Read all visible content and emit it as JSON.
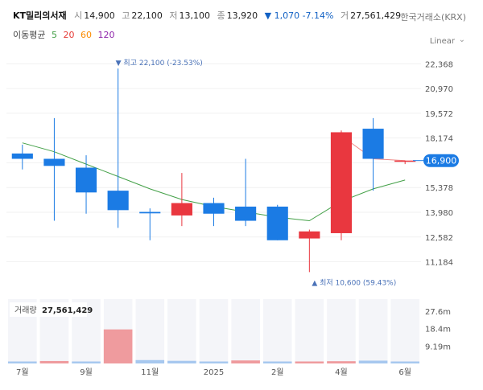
{
  "header": {
    "name": "KT밀리의서재",
    "open_label": "시",
    "open": "14,900",
    "high_label": "고",
    "high": "22,100",
    "low_label": "저",
    "low": "13,100",
    "close_label": "종",
    "close": "13,920",
    "change": "▼ 1,070 -7.14%",
    "vol_label": "거",
    "volume": "27,561,429",
    "exchange": "한국거래소(KRX)"
  },
  "ma_legend": {
    "title": "이동평균",
    "items": [
      {
        "label": "5",
        "color": "#43a047"
      },
      {
        "label": "20",
        "color": "#e53935"
      },
      {
        "label": "60",
        "color": "#fb8c00"
      },
      {
        "label": "120",
        "color": "#8e24aa"
      }
    ]
  },
  "scale_mode": "Linear",
  "chart_data": {
    "type": "candlestick",
    "y_ticks": [
      22368,
      20970,
      19572,
      18174,
      16776,
      15378,
      13980,
      12582,
      11184
    ],
    "y_tick_labels": [
      "22,368",
      "20,970",
      "19,572",
      "18,174",
      "",
      "15,378",
      "13,980",
      "12,582",
      "11,184"
    ],
    "ylim": [
      10300,
      22700
    ],
    "candles": [
      {
        "open": 17300,
        "close": 17000,
        "high": 17800,
        "low": 16400
      },
      {
        "open": 17000,
        "close": 16600,
        "high": 19300,
        "low": 13500
      },
      {
        "open": 16500,
        "close": 15100,
        "high": 17200,
        "low": 13900
      },
      {
        "open": 15200,
        "close": 14100,
        "high": 22100,
        "low": 13100
      },
      {
        "open": 14000,
        "close": 13920,
        "high": 14200,
        "low": 12400
      },
      {
        "open": 13800,
        "close": 14500,
        "high": 16200,
        "low": 13200
      },
      {
        "open": 14500,
        "close": 13900,
        "high": 14800,
        "low": 13200
      },
      {
        "open": 14300,
        "close": 13500,
        "high": 17000,
        "low": 13200
      },
      {
        "open": 14300,
        "close": 12400,
        "high": 14400,
        "low": 12400
      },
      {
        "open": 12500,
        "close": 12900,
        "high": 13000,
        "low": 10600
      },
      {
        "open": 12800,
        "close": 18500,
        "high": 18600,
        "low": 12400
      },
      {
        "open": 18700,
        "close": 17000,
        "high": 19300,
        "low": 15200
      },
      {
        "open": 16900,
        "close": 16900,
        "high": 16900,
        "low": 16700
      }
    ],
    "ma5": [
      17900,
      17400,
      16700,
      16000,
      15300,
      14700,
      14300,
      14000,
      13700,
      13500,
      14600,
      15300,
      15800
    ],
    "ma20_recent": [
      18300,
      17000,
      16900
    ],
    "last_price": "16,900",
    "last_value": 16900,
    "high_note": "▼ 최고 22,100 (-23.53%)",
    "high_value": 22100,
    "low_note": "▲ 최저 10,600 (59.43%)",
    "low_value": 10600,
    "volume_title": "거래량",
    "volume_total": "27,561,429",
    "volume_ticks": [
      "27.6m",
      "18.4m",
      "9.19m"
    ],
    "volume_tick_values": [
      27600000,
      18400000,
      9190000
    ],
    "volume_max": 34000000,
    "volumes": [
      {
        "value": 800000,
        "up": false
      },
      {
        "value": 1300000,
        "up": true
      },
      {
        "value": 600000,
        "up": false
      },
      {
        "value": 18000000,
        "up": true
      },
      {
        "value": 1800000,
        "up": false
      },
      {
        "value": 1400000,
        "up": false
      },
      {
        "value": 900000,
        "up": false
      },
      {
        "value": 1600000,
        "up": true
      },
      {
        "value": 700000,
        "up": false
      },
      {
        "value": 500000,
        "up": true
      },
      {
        "value": 1200000,
        "up": true
      },
      {
        "value": 1500000,
        "up": false
      },
      {
        "value": 400000,
        "up": false
      }
    ],
    "x_labels": [
      "7월",
      "9월",
      "11월",
      "2025",
      "2월",
      "4월",
      "6월"
    ],
    "x_label_index": [
      0.5,
      2.5,
      4.5,
      6.5,
      8.5,
      10.5,
      12.5
    ],
    "colors": {
      "up": "#e9373f",
      "down": "#1b7be4",
      "ma5": "#43a047",
      "ma20": "#e53935",
      "last_price_bg": "#1b7be4"
    }
  }
}
